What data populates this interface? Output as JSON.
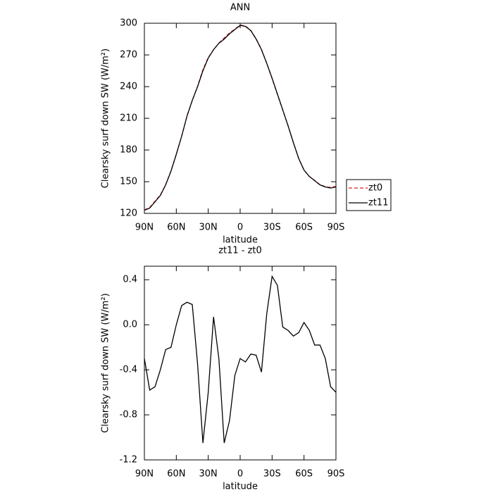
{
  "chart_data": [
    {
      "type": "line",
      "title": "ANN",
      "xlabel": "latitude",
      "ylabel": "Clearsky surf down SW (W/m²)",
      "x": [
        90,
        85,
        80,
        75,
        70,
        65,
        60,
        55,
        50,
        45,
        40,
        35,
        30,
        25,
        20,
        15,
        10,
        5,
        0,
        -5,
        -10,
        -15,
        -20,
        -25,
        -30,
        -35,
        -40,
        -45,
        -50,
        -55,
        -60,
        -65,
        -70,
        -75,
        -80,
        -85,
        -90
      ],
      "xlim": [
        90,
        -90
      ],
      "xticks": [
        {
          "value": 90,
          "label": "90N"
        },
        {
          "value": 60,
          "label": "60N"
        },
        {
          "value": 30,
          "label": "30N"
        },
        0,
        {
          "value": -30,
          "label": "30S"
        },
        {
          "value": -60,
          "label": "60S"
        },
        {
          "value": -90,
          "label": "90S"
        }
      ],
      "ylim": [
        120,
        300
      ],
      "yticks": [
        120,
        150,
        180,
        210,
        240,
        270,
        300
      ],
      "legend": "right",
      "series": [
        {
          "name": "zt0",
          "color": "#d62020",
          "dash": true,
          "values": [
            123.3,
            125.6,
            131.6,
            137.4,
            147.2,
            160.2,
            176,
            192.8,
            211.8,
            226.8,
            240.4,
            256,
            267.6,
            274.9,
            281.3,
            286,
            290.8,
            294.4,
            298.3,
            297.3,
            293.3,
            285.3,
            275.4,
            261.9,
            247.6,
            232.6,
            218,
            203,
            187.1,
            172.1,
            161,
            155,
            151.2,
            147.2,
            145.3,
            144.6,
            145.6
          ]
        },
        {
          "name": "zt11",
          "color": "#000000",
          "dash": false,
          "values": [
            123,
            125,
            131,
            137,
            147,
            160,
            176,
            193,
            212,
            227,
            240,
            255,
            267,
            275,
            281,
            285,
            290,
            294,
            298,
            297,
            293,
            285,
            275,
            262,
            248,
            233,
            218,
            203,
            187,
            172,
            161,
            155,
            151,
            147,
            145,
            144,
            145
          ]
        }
      ]
    },
    {
      "type": "line",
      "title": "zt11 - zt0",
      "xlabel": "latitude",
      "ylabel": "Clearsky surf down SW (W/m²)",
      "x": [
        90,
        85,
        80,
        75,
        70,
        65,
        60,
        55,
        50,
        45,
        40,
        35,
        30,
        25,
        20,
        15,
        10,
        5,
        0,
        -5,
        -10,
        -15,
        -20,
        -25,
        -30,
        -35,
        -40,
        -45,
        -50,
        -55,
        -60,
        -65,
        -70,
        -75,
        -80,
        -85,
        -90
      ],
      "xlim": [
        90,
        -90
      ],
      "xticks": [
        {
          "value": 90,
          "label": "90N"
        },
        {
          "value": 60,
          "label": "60N"
        },
        {
          "value": 30,
          "label": "30N"
        },
        0,
        {
          "value": -30,
          "label": "30S"
        },
        {
          "value": -60,
          "label": "60S"
        },
        {
          "value": -90,
          "label": "90S"
        }
      ],
      "ylim": [
        -1.2,
        0.52
      ],
      "yticks": [
        -1.2,
        -0.8,
        -0.4,
        {
          "value": 0,
          "label": "0.0"
        },
        0.4
      ],
      "color": "#000000",
      "values": [
        -0.3,
        -0.58,
        -0.55,
        -0.4,
        -0.22,
        -0.2,
        0,
        0.17,
        0.2,
        0.18,
        -0.35,
        -1.05,
        -0.6,
        0.07,
        -0.3,
        -1.05,
        -0.85,
        -0.45,
        -0.3,
        -0.33,
        -0.26,
        -0.27,
        -0.42,
        0.1,
        0.43,
        0.35,
        -0.02,
        -0.05,
        -0.1,
        -0.07,
        0.02,
        -0.05,
        -0.18,
        -0.18,
        -0.3,
        -0.55,
        -0.6
      ]
    }
  ]
}
